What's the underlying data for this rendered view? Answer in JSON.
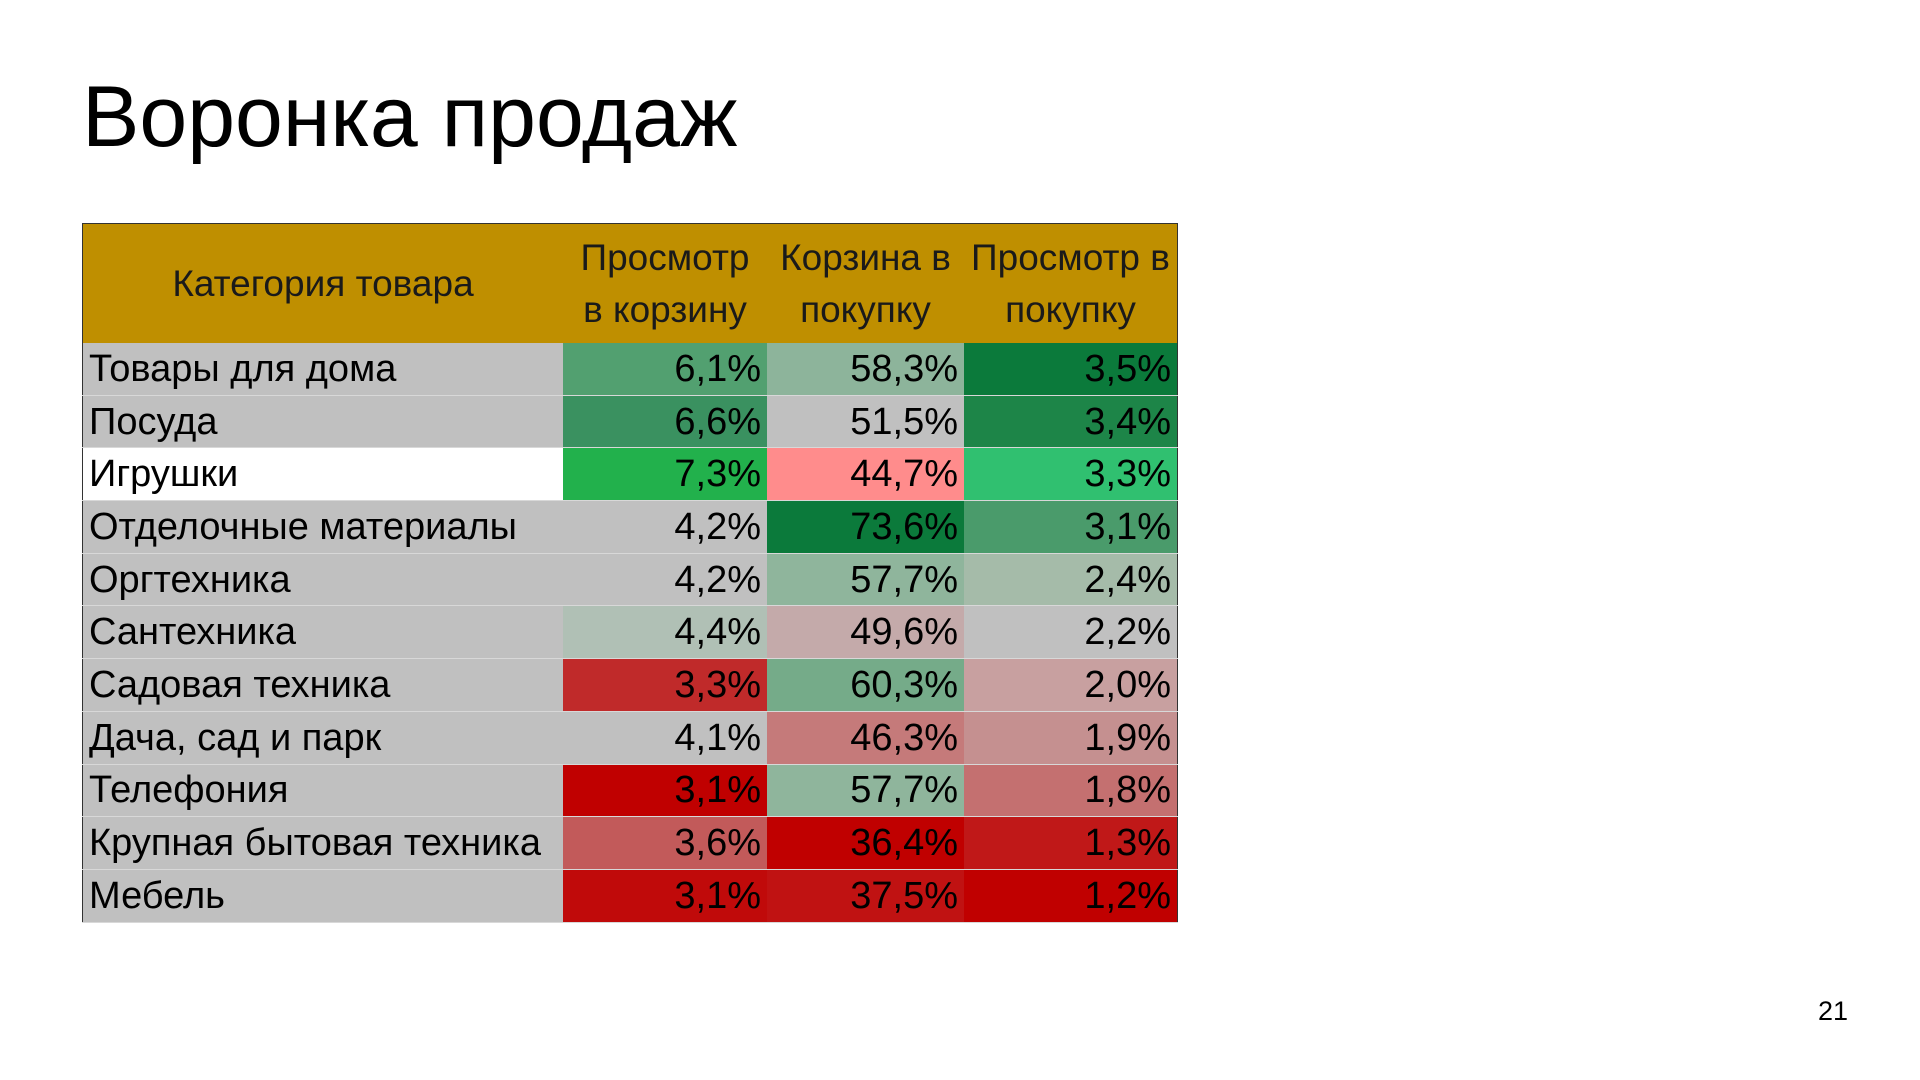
{
  "header": {
    "title": "Воронка продаж"
  },
  "table": {
    "columns": [
      "Категория товара",
      "Просмотр в корзину",
      "Корзина в покупку",
      "Просмотр в покупку"
    ],
    "rows": [
      [
        "Товары для дома",
        "6,1%",
        "58,3%",
        "3,5%"
      ],
      [
        "Посуда",
        "6,6%",
        "51,5%",
        "3,4%"
      ],
      [
        "Игрушки",
        "7,3%",
        "44,7%",
        "3,3%"
      ],
      [
        "Отделочные материалы",
        "4,2%",
        "73,6%",
        "3,1%"
      ],
      [
        "Оргтехника",
        "4,2%",
        "57,7%",
        "2,4%"
      ],
      [
        "Сантехника",
        "4,4%",
        "49,6%",
        "2,2%"
      ],
      [
        "Садовая техника",
        "3,3%",
        "60,3%",
        "2,0%"
      ],
      [
        "Дача, сад и парк",
        "4,1%",
        "46,3%",
        "1,9%"
      ],
      [
        "Телефония",
        "3,1%",
        "57,7%",
        "1,8%"
      ],
      [
        "Крупная бытовая техника",
        "3,6%",
        "36,4%",
        "1,3%"
      ],
      [
        "Мебель",
        "3,1%",
        "37,5%",
        "1,2%"
      ]
    ]
  },
  "footer": {
    "page_number": "21"
  }
}
